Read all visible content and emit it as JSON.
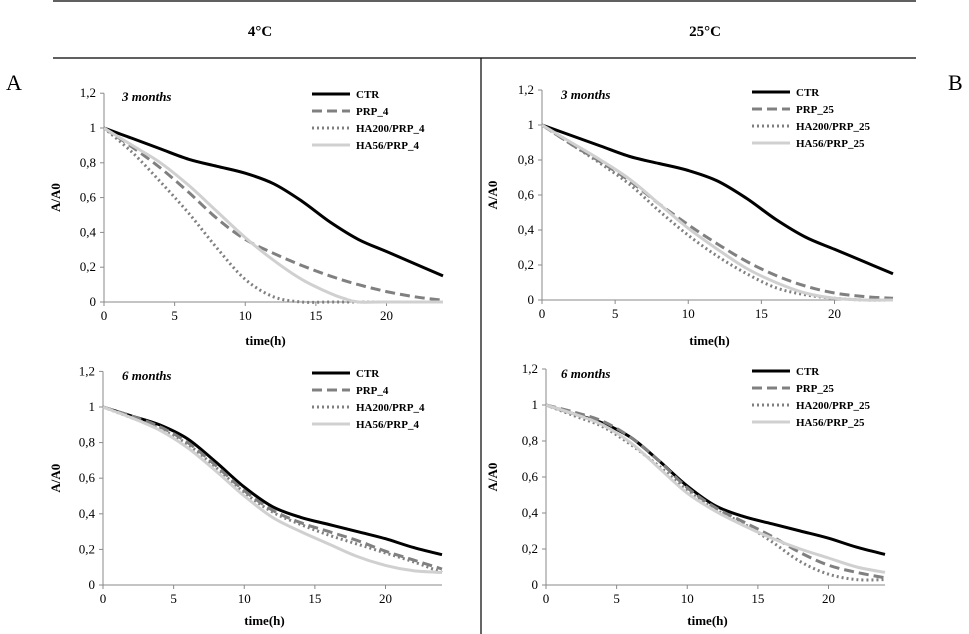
{
  "header": {
    "col_left": "4°C",
    "col_right": "25°C"
  },
  "panel_labels": {
    "left": "A",
    "right": "B"
  },
  "series_styles": {
    "CTR": {
      "color": "#000000",
      "dash": "none"
    },
    "PRP": {
      "color": "#808080",
      "dash": "10,5"
    },
    "HA200": {
      "color": "#808080",
      "dash": "2,3"
    },
    "HA56": {
      "color": "#d0d0d0",
      "dash": "none"
    }
  },
  "chart_data": [
    {
      "id": "A-3m",
      "type": "line",
      "title": "3 months",
      "xlabel": "time(h)",
      "ylabel": "A/A0",
      "xlim": [
        0,
        24
      ],
      "ylim": [
        0,
        1.2
      ],
      "x_ticks": [
        "0",
        "5",
        "10",
        "15",
        "20"
      ],
      "y_ticks": [
        "0",
        "0,2",
        "0,4",
        "0,6",
        "0,8",
        "1",
        "1,2"
      ],
      "series": [
        {
          "name": "CTR",
          "style": "CTR",
          "x": [
            0,
            2,
            4,
            6,
            8,
            10,
            12,
            14,
            16,
            18,
            20,
            22,
            24
          ],
          "y": [
            1,
            0.94,
            0.88,
            0.82,
            0.78,
            0.74,
            0.68,
            0.58,
            0.46,
            0.36,
            0.29,
            0.22,
            0.15
          ]
        },
        {
          "name": "PRP_4",
          "style": "PRP",
          "x": [
            0,
            2,
            4,
            6,
            8,
            10,
            12,
            14,
            16,
            18,
            20,
            22,
            24
          ],
          "y": [
            1,
            0.89,
            0.77,
            0.63,
            0.48,
            0.36,
            0.28,
            0.21,
            0.15,
            0.1,
            0.06,
            0.03,
            0.01
          ]
        },
        {
          "name": "HA200/PRP_4",
          "style": "HA200",
          "x": [
            0,
            2,
            4,
            6,
            8,
            10,
            12,
            14,
            16,
            18,
            20,
            22,
            24
          ],
          "y": [
            1,
            0.86,
            0.69,
            0.51,
            0.31,
            0.13,
            0.03,
            0,
            0,
            0,
            0,
            0,
            0
          ]
        },
        {
          "name": "HA56/PRP_4",
          "style": "HA56",
          "x": [
            0,
            2,
            4,
            6,
            8,
            10,
            12,
            14,
            16,
            17,
            18,
            20,
            24
          ],
          "y": [
            1,
            0.9,
            0.8,
            0.67,
            0.52,
            0.37,
            0.24,
            0.13,
            0.05,
            0.02,
            0,
            0,
            0
          ]
        }
      ]
    },
    {
      "id": "B-3m",
      "type": "line",
      "title": "3 months",
      "xlabel": "time(h)",
      "ylabel": "A/A0",
      "xlim": [
        0,
        24
      ],
      "ylim": [
        0,
        1.2
      ],
      "x_ticks": [
        "0",
        "5",
        "10",
        "15",
        "20"
      ],
      "y_ticks": [
        "0",
        "0,2",
        "0,4",
        "0,6",
        "0,8",
        "1",
        "1,2"
      ],
      "series": [
        {
          "name": "CTR",
          "style": "CTR",
          "x": [
            0,
            2,
            4,
            6,
            8,
            10,
            12,
            14,
            16,
            18,
            20,
            22,
            24
          ],
          "y": [
            1,
            0.94,
            0.88,
            0.82,
            0.78,
            0.74,
            0.68,
            0.58,
            0.46,
            0.36,
            0.29,
            0.22,
            0.15
          ]
        },
        {
          "name": "PRP_25",
          "style": "PRP",
          "x": [
            0,
            2,
            4,
            6,
            8,
            10,
            12,
            14,
            16,
            18,
            20,
            22,
            24
          ],
          "y": [
            1,
            0.89,
            0.79,
            0.68,
            0.55,
            0.43,
            0.32,
            0.22,
            0.14,
            0.08,
            0.04,
            0.02,
            0.01
          ]
        },
        {
          "name": "HA200/PRP_25",
          "style": "HA200",
          "x": [
            0,
            2,
            4,
            6,
            8,
            10,
            12,
            14,
            16,
            18,
            20,
            22,
            24
          ],
          "y": [
            1,
            0.89,
            0.78,
            0.66,
            0.51,
            0.37,
            0.25,
            0.15,
            0.07,
            0.03,
            0.01,
            0,
            0
          ]
        },
        {
          "name": "HA56/PRP_25",
          "style": "HA56",
          "x": [
            0,
            2,
            4,
            6,
            8,
            10,
            12,
            14,
            16,
            18,
            20,
            22,
            24
          ],
          "y": [
            1,
            0.9,
            0.8,
            0.69,
            0.55,
            0.41,
            0.29,
            0.18,
            0.1,
            0.04,
            0.01,
            0,
            0
          ]
        }
      ]
    },
    {
      "id": "A-6m",
      "type": "line",
      "title": "6 months",
      "xlabel": "time(h)",
      "ylabel": "A/A0",
      "xlim": [
        0,
        24
      ],
      "ylim": [
        0,
        1.2
      ],
      "x_ticks": [
        "0",
        "5",
        "10",
        "15",
        "20"
      ],
      "y_ticks": [
        "0",
        "0,2",
        "0,4",
        "0,6",
        "0,8",
        "1",
        "1,2"
      ],
      "series": [
        {
          "name": "CTR",
          "style": "CTR",
          "x": [
            0,
            2,
            4,
            6,
            8,
            10,
            12,
            14,
            16,
            18,
            20,
            22,
            24
          ],
          "y": [
            1,
            0.95,
            0.9,
            0.82,
            0.69,
            0.55,
            0.44,
            0.38,
            0.34,
            0.3,
            0.26,
            0.21,
            0.17
          ]
        },
        {
          "name": "PRP_4",
          "style": "PRP",
          "x": [
            0,
            2,
            4,
            6,
            8,
            10,
            12,
            14,
            16,
            18,
            20,
            22,
            24
          ],
          "y": [
            1,
            0.95,
            0.89,
            0.8,
            0.67,
            0.53,
            0.42,
            0.35,
            0.3,
            0.25,
            0.19,
            0.14,
            0.09
          ]
        },
        {
          "name": "HA200/PRP_4",
          "style": "HA200",
          "x": [
            0,
            2,
            4,
            6,
            8,
            10,
            12,
            14,
            16,
            18,
            20,
            22,
            24
          ],
          "y": [
            1,
            0.94,
            0.88,
            0.79,
            0.66,
            0.52,
            0.41,
            0.34,
            0.28,
            0.23,
            0.18,
            0.13,
            0.07
          ]
        },
        {
          "name": "HA56/PRP_4",
          "style": "HA56",
          "x": [
            0,
            2,
            4,
            6,
            8,
            10,
            12,
            14,
            16,
            18,
            20,
            22,
            24
          ],
          "y": [
            1,
            0.94,
            0.87,
            0.77,
            0.64,
            0.5,
            0.38,
            0.3,
            0.23,
            0.16,
            0.11,
            0.08,
            0.07
          ]
        }
      ]
    },
    {
      "id": "B-6m",
      "type": "line",
      "title": "6 months",
      "xlabel": "time(h)",
      "ylabel": "A/A0",
      "xlim": [
        0,
        24
      ],
      "ylim": [
        0,
        1.2
      ],
      "x_ticks": [
        "0",
        "5",
        "10",
        "15",
        "20"
      ],
      "y_ticks": [
        "0",
        "0,2",
        "0,4",
        "0,6",
        "0,8",
        "1",
        "1,2"
      ],
      "series": [
        {
          "name": "CTR",
          "style": "CTR",
          "x": [
            0,
            2,
            4,
            6,
            8,
            10,
            12,
            14,
            16,
            18,
            20,
            22,
            24
          ],
          "y": [
            1,
            0.95,
            0.9,
            0.82,
            0.69,
            0.55,
            0.44,
            0.38,
            0.34,
            0.3,
            0.26,
            0.21,
            0.17
          ]
        },
        {
          "name": "PRP_25",
          "style": "PRP",
          "x": [
            0,
            2,
            4,
            6,
            8,
            10,
            12,
            14,
            16,
            18,
            20,
            22,
            24
          ],
          "y": [
            1,
            0.96,
            0.91,
            0.82,
            0.69,
            0.54,
            0.43,
            0.35,
            0.27,
            0.18,
            0.11,
            0.07,
            0.04
          ]
        },
        {
          "name": "HA200/PRP_25",
          "style": "HA200",
          "x": [
            0,
            2,
            4,
            6,
            8,
            10,
            12,
            14,
            16,
            18,
            20,
            22,
            24
          ],
          "y": [
            1,
            0.94,
            0.88,
            0.78,
            0.66,
            0.53,
            0.42,
            0.34,
            0.24,
            0.13,
            0.06,
            0.03,
            0.03
          ]
        },
        {
          "name": "HA56/PRP_25",
          "style": "HA56",
          "x": [
            0,
            2,
            4,
            6,
            8,
            10,
            12,
            14,
            16,
            18,
            20,
            22,
            24
          ],
          "y": [
            1,
            0.95,
            0.89,
            0.79,
            0.65,
            0.51,
            0.41,
            0.33,
            0.26,
            0.2,
            0.15,
            0.1,
            0.07
          ]
        }
      ]
    }
  ]
}
